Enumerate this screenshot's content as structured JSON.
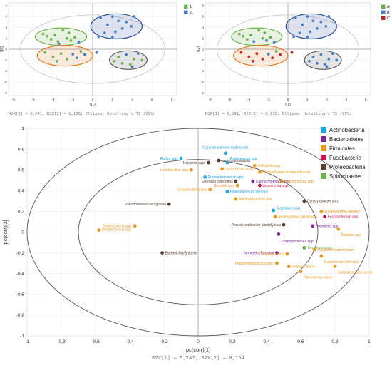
{
  "chart_data": [
    {
      "type": "scatter",
      "panel": "score-plot-1",
      "xlabel": "t[1]",
      "ylabel": "t[2]",
      "x_ticks": [
        -8,
        -6,
        -4,
        -2,
        0,
        2,
        4,
        6,
        8
      ],
      "y_ticks": [
        -8,
        -6,
        -4,
        -2,
        0,
        2,
        4,
        6,
        8
      ],
      "xlim": [
        -8.5,
        8.5
      ],
      "ylim": [
        -8.5,
        8.5
      ],
      "caption": "R2X[1] = 0,241; R2X[2] = 0,158; Ellipse: Hotelling's T2 (95%)",
      "legend": [
        {
          "label": "1",
          "color": "#6ab04c"
        },
        {
          "label": "2",
          "color": "#4a7fc1"
        }
      ],
      "groups": [
        {
          "color": "#6ab04c",
          "ellipse": {
            "cx": -3.2,
            "cy": 2.3,
            "rx": 2.6,
            "ry": 1.6
          }
        },
        {
          "color": "#2f4f9a",
          "ellipse": {
            "cx": 2.4,
            "cy": 4.2,
            "rx": 2.6,
            "ry": 2.3
          }
        },
        {
          "color": "#e07b23",
          "ellipse": {
            "cx": -2.8,
            "cy": -1.2,
            "rx": 2.8,
            "ry": 1.9
          }
        },
        {
          "color": "#555555",
          "ellipse": {
            "cx": 3.6,
            "cy": -2.0,
            "rx": 1.9,
            "ry": 1.7
          }
        }
      ],
      "outer_ellipse": {
        "cx": 0,
        "cy": 0,
        "rx": 7.3,
        "ry": 6.3
      },
      "points": [
        {
          "x": -5.0,
          "y": 2.8,
          "g": 0
        },
        {
          "x": -4.6,
          "y": 2.4,
          "g": 0
        },
        {
          "x": -4.2,
          "y": 1.8,
          "g": 0
        },
        {
          "x": -3.8,
          "y": 2.6,
          "g": 0
        },
        {
          "x": -3.5,
          "y": 1.4,
          "g": 0
        },
        {
          "x": -3.0,
          "y": 3.5,
          "g": 0
        },
        {
          "x": -2.6,
          "y": 2.0,
          "g": 0
        },
        {
          "x": -2.2,
          "y": 1.6,
          "g": 0
        },
        {
          "x": -1.8,
          "y": 2.2,
          "g": 0
        },
        {
          "x": -2.4,
          "y": 3.0,
          "g": 0
        },
        {
          "x": -3.4,
          "y": 1.0,
          "g": 1
        },
        {
          "x": -1.4,
          "y": 1.3,
          "g": 1
        },
        {
          "x": 0.8,
          "y": 5.8,
          "g": 1
        },
        {
          "x": 1.5,
          "y": 4.5,
          "g": 1
        },
        {
          "x": 2.0,
          "y": 6.0,
          "g": 1
        },
        {
          "x": 2.3,
          "y": 3.2,
          "g": 1
        },
        {
          "x": 2.6,
          "y": 5.2,
          "g": 1
        },
        {
          "x": 3.0,
          "y": 3.8,
          "g": 1
        },
        {
          "x": 3.4,
          "y": 5.0,
          "g": 1
        },
        {
          "x": 3.9,
          "y": 4.2,
          "g": 1
        },
        {
          "x": 1.2,
          "y": 3.0,
          "g": 1
        },
        {
          "x": 2.0,
          "y": 2.2,
          "g": 1
        },
        {
          "x": 4.2,
          "y": 6.0,
          "g": 1
        },
        {
          "x": 0.6,
          "y": 2.3,
          "g": 1
        },
        {
          "x": -4.8,
          "y": -0.6,
          "g": 0
        },
        {
          "x": -4.0,
          "y": -1.4,
          "g": 0
        },
        {
          "x": -3.2,
          "y": -0.8,
          "g": 0
        },
        {
          "x": -2.6,
          "y": -1.8,
          "g": 0
        },
        {
          "x": -2.0,
          "y": -0.9,
          "g": 1
        },
        {
          "x": -1.6,
          "y": -1.6,
          "g": 1
        },
        {
          "x": -3.6,
          "y": -2.2,
          "g": 0
        },
        {
          "x": -1.2,
          "y": -0.4,
          "g": 0
        },
        {
          "x": -0.8,
          "y": -1.0,
          "g": 1
        },
        {
          "x": 2.6,
          "y": -1.4,
          "g": 0
        },
        {
          "x": 3.0,
          "y": -2.6,
          "g": 0
        },
        {
          "x": 3.4,
          "y": -1.0,
          "g": 1
        },
        {
          "x": 3.8,
          "y": -2.8,
          "g": 0
        },
        {
          "x": 4.2,
          "y": -1.8,
          "g": 0
        },
        {
          "x": 4.6,
          "y": -0.8,
          "g": 1
        },
        {
          "x": 4.0,
          "y": -3.2,
          "g": 1
        },
        {
          "x": 2.2,
          "y": -2.2,
          "g": 0
        },
        {
          "x": 5.0,
          "y": -2.0,
          "g": 0
        },
        {
          "x": 0.4,
          "y": -0.6,
          "g": 1
        }
      ]
    },
    {
      "type": "scatter",
      "panel": "score-plot-2",
      "xlabel": "t[1]",
      "ylabel": "t[2]",
      "x_ticks": [
        -8,
        -6,
        -4,
        -2,
        0,
        2,
        4,
        6,
        8
      ],
      "y_ticks": [
        -8,
        -6,
        -4,
        -2,
        0,
        2,
        4,
        6,
        8
      ],
      "xlim": [
        -8.5,
        8.5
      ],
      "ylim": [
        -8.5,
        8.5
      ],
      "caption": "R2X[1] = 0,241; R2X[2] = 0,158; Ellipse: Hotelling's T2 (95%)",
      "legend": [
        {
          "label": "A",
          "color": "#6ab04c"
        },
        {
          "label": "B",
          "color": "#4a7fc1"
        },
        {
          "label": "C",
          "color": "#c0282c"
        }
      ],
      "groups": [
        {
          "color": "#6ab04c",
          "ellipse": {
            "cx": -3.2,
            "cy": 2.3,
            "rx": 2.6,
            "ry": 1.6
          }
        },
        {
          "color": "#2f4f9a",
          "ellipse": {
            "cx": 2.4,
            "cy": 4.2,
            "rx": 2.6,
            "ry": 2.3
          }
        },
        {
          "color": "#e07b23",
          "ellipse": {
            "cx": -2.8,
            "cy": -1.2,
            "rx": 2.8,
            "ry": 1.9
          }
        },
        {
          "color": "#555555",
          "ellipse": {
            "cx": 3.6,
            "cy": -2.0,
            "rx": 1.9,
            "ry": 1.7
          }
        }
      ],
      "outer_ellipse": {
        "cx": 0,
        "cy": 0,
        "rx": 7.3,
        "ry": 6.3
      },
      "points": [
        {
          "x": -5.0,
          "y": 2.8,
          "g": 0
        },
        {
          "x": -4.6,
          "y": 2.4,
          "g": 0
        },
        {
          "x": -4.2,
          "y": 1.8,
          "g": 0
        },
        {
          "x": -3.8,
          "y": 2.6,
          "g": 0
        },
        {
          "x": -3.5,
          "y": 1.4,
          "g": 1
        },
        {
          "x": -3.0,
          "y": 3.5,
          "g": 0
        },
        {
          "x": -2.6,
          "y": 2.0,
          "g": 0
        },
        {
          "x": -2.2,
          "y": 1.6,
          "g": 1
        },
        {
          "x": -1.8,
          "y": 2.2,
          "g": 0
        },
        {
          "x": -2.4,
          "y": 3.0,
          "g": 0
        },
        {
          "x": -1.4,
          "y": 1.3,
          "g": 1
        },
        {
          "x": 0.8,
          "y": 5.8,
          "g": 1
        },
        {
          "x": 1.5,
          "y": 4.5,
          "g": 1
        },
        {
          "x": 2.0,
          "y": 6.0,
          "g": 1
        },
        {
          "x": 2.3,
          "y": 3.2,
          "g": 1
        },
        {
          "x": 2.6,
          "y": 5.2,
          "g": 1
        },
        {
          "x": 3.0,
          "y": 3.8,
          "g": 1
        },
        {
          "x": 3.4,
          "y": 5.0,
          "g": 1
        },
        {
          "x": 3.9,
          "y": 4.2,
          "g": 1
        },
        {
          "x": 1.2,
          "y": 3.0,
          "g": 1
        },
        {
          "x": 2.0,
          "y": 2.2,
          "g": 1
        },
        {
          "x": 4.2,
          "y": 6.0,
          "g": 1
        },
        {
          "x": 0.6,
          "y": 2.3,
          "g": 1
        },
        {
          "x": -4.8,
          "y": -0.6,
          "g": 2
        },
        {
          "x": -4.0,
          "y": -1.4,
          "g": 2
        },
        {
          "x": -3.2,
          "y": -0.8,
          "g": 2
        },
        {
          "x": -2.6,
          "y": -1.8,
          "g": 2
        },
        {
          "x": -2.0,
          "y": -0.9,
          "g": 1
        },
        {
          "x": -1.6,
          "y": -1.6,
          "g": 2
        },
        {
          "x": -3.6,
          "y": -2.2,
          "g": 2
        },
        {
          "x": -1.2,
          "y": -0.4,
          "g": 0
        },
        {
          "x": -0.8,
          "y": -1.0,
          "g": 2
        },
        {
          "x": 2.6,
          "y": -1.4,
          "g": 1
        },
        {
          "x": 3.0,
          "y": -2.6,
          "g": 1
        },
        {
          "x": 3.4,
          "y": -1.0,
          "g": 1
        },
        {
          "x": 3.8,
          "y": -2.8,
          "g": 1
        },
        {
          "x": 4.2,
          "y": -1.8,
          "g": 1
        },
        {
          "x": 4.6,
          "y": -0.8,
          "g": 1
        },
        {
          "x": 4.0,
          "y": -3.2,
          "g": 1
        },
        {
          "x": 2.2,
          "y": -2.2,
          "g": 1
        },
        {
          "x": 5.0,
          "y": -2.0,
          "g": 1
        },
        {
          "x": 0.4,
          "y": -0.6,
          "g": 2
        }
      ]
    },
    {
      "type": "scatter",
      "panel": "loading-plot",
      "xlabel": "pc(corr)[1]",
      "ylabel": "pc(corr)[2]",
      "xlim": [
        -1,
        1
      ],
      "ylim": [
        -1,
        1
      ],
      "x_ticks": [
        "-1",
        "-0,8",
        "-0,6",
        "-0,4",
        "-0,2",
        "0",
        "0,2",
        "0,4",
        "0,6",
        "0,8",
        "1"
      ],
      "y_ticks": [
        "1",
        "0,8",
        "0,6",
        "0,4",
        "0,2",
        "0",
        "-0,2",
        "-0,4",
        "-0,6",
        "-0,8",
        "-1"
      ],
      "caption": "R2X[1] = 0,247; R2X[2] = 0,154",
      "ellipses": [
        {
          "rx": 1.0,
          "ry": 1.0
        },
        {
          "rx": 0.7,
          "ry": 0.7
        }
      ],
      "legend": [
        {
          "label": "Actinobacteria",
          "color": "#1aa3dc"
        },
        {
          "label": "Bacteroidetes",
          "color": "#7b2b98"
        },
        {
          "label": "Firmicutes",
          "color": "#e69a1e"
        },
        {
          "label": "Fusobacteria",
          "color": "#c4174b"
        },
        {
          "label": "Proteobacteria",
          "color": "#5a4035"
        },
        {
          "label": "Spirochaetes",
          "color": "#6ab04c"
        }
      ],
      "points": [
        {
          "label": "Rothia spp.",
          "x": -0.1,
          "y": 0.71,
          "p": 0,
          "anchor": "end"
        },
        {
          "label": "Corynebacterium matruchotii",
          "x": 0.16,
          "y": 0.76,
          "p": 0,
          "anchor": "middle",
          "dy": -8
        },
        {
          "label": "Neisseria spp.",
          "x": 0.06,
          "y": 0.67,
          "p": 4,
          "anchor": "end"
        },
        {
          "label": "Lautropia mirabilis",
          "x": 0.12,
          "y": 0.69,
          "p": 4,
          "anchor": "start"
        },
        {
          "label": "Actinomyces spp.",
          "x": 0.17,
          "y": 0.67,
          "p": 0,
          "anchor": "start",
          "dy": -6
        },
        {
          "label": "Veillonella spp.",
          "x": 0.33,
          "y": 0.64,
          "p": 2,
          "anchor": "start"
        },
        {
          "label": "Lactobacillus spp.",
          "x": -0.04,
          "y": 0.6,
          "p": 2,
          "anchor": "end"
        },
        {
          "label": "Lactococcus lactis",
          "x": 0.14,
          "y": 0.61,
          "p": 2,
          "anchor": "start"
        },
        {
          "label": "Megasphaera micronuciformis",
          "x": 0.36,
          "y": 0.58,
          "p": 2,
          "anchor": "start"
        },
        {
          "label": "Propionibacterium spp.",
          "x": 0.04,
          "y": 0.53,
          "p": 0,
          "anchor": "start"
        },
        {
          "label": "Eikenella corrodens",
          "x": 0.22,
          "y": 0.49,
          "p": 4,
          "anchor": "end"
        },
        {
          "label": "Capnocytophaga spp.",
          "x": 0.32,
          "y": 0.49,
          "p": 1,
          "anchor": "start"
        },
        {
          "label": "Selenomonas spp.",
          "x": 0.49,
          "y": 0.49,
          "p": 2,
          "anchor": "start"
        },
        {
          "label": "Gemella spp.",
          "x": 0.23,
          "y": 0.45,
          "p": 2,
          "anchor": "end"
        },
        {
          "label": "Leptotrichia spp.",
          "x": 0.36,
          "y": 0.45,
          "p": 3,
          "anchor": "start"
        },
        {
          "label": "Granulicatella spp.",
          "x": 0.07,
          "y": 0.41,
          "p": 2,
          "anchor": "end"
        },
        {
          "label": "Bifidobacterium dentium",
          "x": 0.17,
          "y": 0.39,
          "p": 0,
          "anchor": "start"
        },
        {
          "label": "Abiotrophia defectiva",
          "x": 0.22,
          "y": 0.32,
          "p": 2,
          "anchor": "start"
        },
        {
          "label": "Campylobacter spp.",
          "x": 0.62,
          "y": 0.3,
          "p": 4,
          "anchor": "start"
        },
        {
          "label": "Pseudomonas aeruginosa",
          "x": -0.17,
          "y": 0.27,
          "p": 4,
          "anchor": "end"
        },
        {
          "label": "Atopobium spp.",
          "x": 0.44,
          "y": 0.21,
          "p": 0,
          "anchor": "start",
          "dy": -3
        },
        {
          "label": "Shuttleworthia setelles",
          "x": 0.72,
          "y": 0.2,
          "p": 2,
          "anchor": "start"
        },
        {
          "label": "Anaeroglobus geminatus",
          "x": 0.45,
          "y": 0.15,
          "p": 2,
          "anchor": "start"
        },
        {
          "label": "Fusobacterium spp.",
          "x": 0.74,
          "y": 0.15,
          "p": 3,
          "anchor": "start"
        },
        {
          "label": "Pseudoramibacter alactolyticus",
          "x": 0.5,
          "y": 0.07,
          "p": 4,
          "anchor": "end"
        },
        {
          "label": "Prevotella spp.",
          "x": 0.67,
          "y": 0.06,
          "p": 1,
          "anchor": "start"
        },
        {
          "label": "Dialister spp.",
          "x": 0.82,
          "y": 0.03,
          "p": 2,
          "anchor": "start",
          "dy": 8
        },
        {
          "label": "Enterococcus spp.",
          "x": -0.37,
          "y": 0.06,
          "p": 2,
          "anchor": "end"
        },
        {
          "label": "Streptococcus spp.",
          "x": -0.58,
          "y": 0.02,
          "p": 2,
          "anchor": "start",
          "dy": -1
        },
        {
          "label": "Porphyromonas spp.",
          "x": 0.47,
          "y": -0.02,
          "p": 1,
          "anchor": "start",
          "dy": 10
        },
        {
          "label": "Escherichia/Shigella",
          "x": -0.21,
          "y": -0.2,
          "p": 4,
          "anchor": "start"
        },
        {
          "label": "Tannerella forsythia",
          "x": 0.46,
          "y": -0.2,
          "p": 1,
          "anchor": "end"
        },
        {
          "label": "Treponema spp.",
          "x": 0.62,
          "y": -0.15,
          "p": 5,
          "anchor": "start"
        },
        {
          "label": "Mogibacterium timidum",
          "x": 0.68,
          "y": -0.17,
          "p": 2,
          "anchor": "start"
        },
        {
          "label": "Catonella morbi",
          "x": 0.52,
          "y": -0.21,
          "p": 2,
          "anchor": "end"
        },
        {
          "label": "Eubacterium infirmum",
          "x": 0.72,
          "y": -0.23,
          "p": 2,
          "anchor": "start",
          "dy": 8
        },
        {
          "label": "Peptostreptococcus spp.",
          "x": 0.46,
          "y": -0.3,
          "p": 2,
          "anchor": "end"
        },
        {
          "label": "Filifactor alocis",
          "x": 0.53,
          "y": -0.33,
          "p": 2,
          "anchor": "start"
        },
        {
          "label": "Solobacterium moorei",
          "x": 0.8,
          "y": -0.33,
          "p": 2,
          "anchor": "start",
          "dy": 8
        },
        {
          "label": "Parvimonas micra",
          "x": 0.6,
          "y": -0.38,
          "p": 2,
          "anchor": "start",
          "dy": 8
        }
      ]
    }
  ]
}
